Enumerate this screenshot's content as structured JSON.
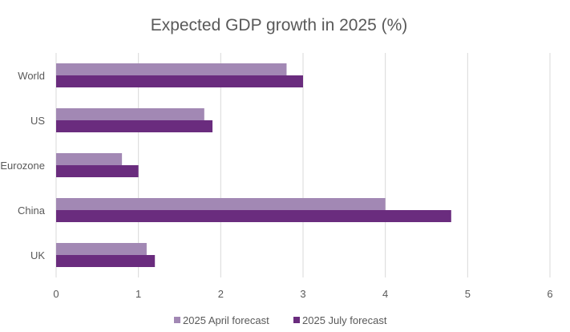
{
  "chart_data": {
    "type": "bar",
    "orientation": "horizontal",
    "title": "Expected GDP growth in 2025 (%)",
    "categories": [
      "World",
      "US",
      "Eurozone",
      "China",
      "UK"
    ],
    "series": [
      {
        "name": "2025 April forecast",
        "color": "#a288b4",
        "values": [
          2.8,
          1.8,
          0.8,
          4.0,
          1.1
        ]
      },
      {
        "name": "2025 July forecast",
        "color": "#6a2c7e",
        "values": [
          3.0,
          1.9,
          1.0,
          4.8,
          1.2
        ]
      }
    ],
    "xlim": [
      0,
      6
    ],
    "xticks": [
      "0",
      "1",
      "2",
      "3",
      "4",
      "5",
      "6"
    ],
    "grid": true,
    "legend_position": "bottom"
  }
}
